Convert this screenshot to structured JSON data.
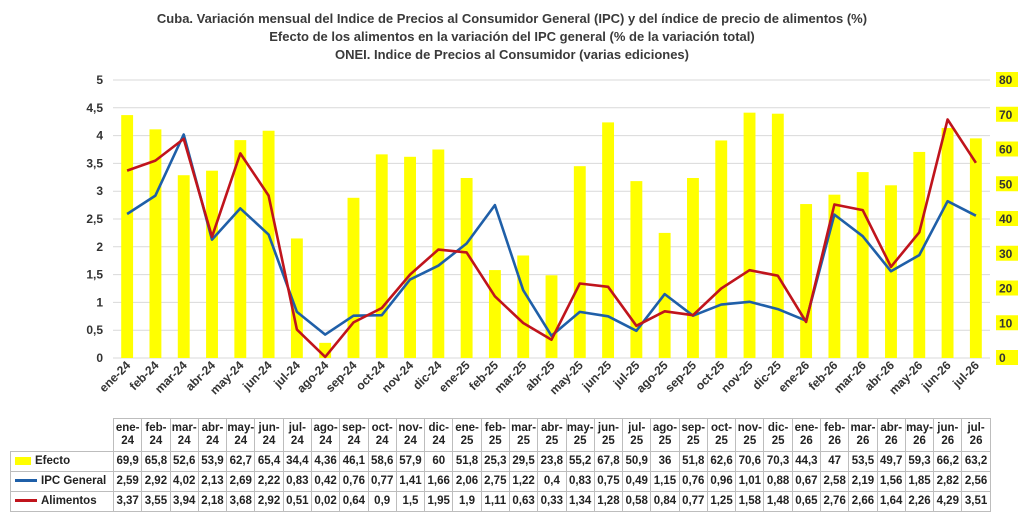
{
  "chart_data": {
    "type": "bar+line",
    "title": "Cuba. Variación mensual del Indice de Precios al Consumidor General  (IPC) y del índice de precio de alimentos (%)",
    "subtitle": "Efecto de los alimentos en la variación del IPC general (%  de la variación total)",
    "subtitle2": "ONEI. Indice de Precios al Consumidor (varias ediciones)",
    "categories": [
      "ene-24",
      "feb-24",
      "mar-24",
      "abr-24",
      "may-24",
      "jun-24",
      "jul-24",
      "ago-24",
      "sep-24",
      "oct-24",
      "nov-24",
      "dic-24",
      "ene-25",
      "feb-25",
      "mar-25",
      "abr-25",
      "may-25",
      "jun-25",
      "jul-25",
      "ago-25",
      "sep-25",
      "oct-25",
      "nov-25",
      "dic-25",
      "ene-26",
      "feb-26",
      "mar-26",
      "abr-26",
      "may-26",
      "jun-26",
      "jul-26"
    ],
    "table_categories": [
      "ene-24",
      "feb-24",
      "mar-24",
      "abr-24",
      "may-24",
      "jun-24",
      "jul-24",
      "ago-24",
      "sep-24",
      "oct-24",
      "nov-24",
      "dic-24",
      "ene-25",
      "feb-25",
      "mar-25",
      "abr-25",
      "may-25",
      "jun-25",
      "jul-25",
      "ago-25",
      "sep-25",
      "oct-25",
      "nov-25",
      "dic-25",
      "ene-26",
      "feb-26",
      "mar-26",
      "abr-26",
      "may-26",
      "jun-26",
      "jul-26"
    ],
    "series": [
      {
        "name": "Efecto",
        "kind": "bar",
        "axis": "right",
        "color": "#ffff00",
        "values": [
          69.9,
          65.8,
          52.6,
          53.9,
          62.7,
          65.4,
          34.4,
          4.36,
          46.1,
          58.6,
          57.9,
          60,
          51.8,
          25.3,
          29.5,
          23.8,
          55.2,
          67.8,
          50.9,
          36,
          51.8,
          62.6,
          70.6,
          70.3,
          44.3,
          47,
          53.5,
          49.7,
          59.3,
          66.2,
          63.2
        ],
        "labels": [
          "69,9",
          "65,8",
          "52,6",
          "53,9",
          "62,7",
          "65,4",
          "34,4",
          "4,36",
          "46,1",
          "58,6",
          "57,9",
          "60",
          "51,8",
          "25,3",
          "29,5",
          "23,8",
          "55,2",
          "67,8",
          "50,9",
          "36",
          "51,8",
          "62,6",
          "70,6",
          "70,3",
          "44,3",
          "47",
          "53,5",
          "49,7",
          "59,3",
          "66,2",
          "63,2"
        ]
      },
      {
        "name": "IPC General",
        "kind": "line",
        "axis": "left",
        "color": "#1f5fa8",
        "values": [
          2.59,
          2.92,
          4.02,
          2.13,
          2.69,
          2.22,
          0.83,
          0.42,
          0.76,
          0.77,
          1.41,
          1.66,
          2.06,
          2.75,
          1.22,
          0.4,
          0.83,
          0.75,
          0.49,
          1.15,
          0.76,
          0.96,
          1.01,
          0.88,
          0.67,
          2.58,
          2.19,
          1.56,
          1.85,
          2.82,
          2.56
        ],
        "labels": [
          "2,59",
          "2,92",
          "4,02",
          "2,13",
          "2,69",
          "2,22",
          "0,83",
          "0,42",
          "0,76",
          "0,77",
          "1,41",
          "1,66",
          "2,06",
          "2,75",
          "1,22",
          "0,4",
          "0,83",
          "0,75",
          "0,49",
          "1,15",
          "0,76",
          "0,96",
          "1,01",
          "0,88",
          "0,67",
          "2,58",
          "2,19",
          "1,56",
          "1,85",
          "2,82",
          "2,56"
        ]
      },
      {
        "name": "Alimentos",
        "kind": "line",
        "axis": "left",
        "color": "#c0141c",
        "values": [
          3.37,
          3.55,
          3.94,
          2.18,
          3.68,
          2.92,
          0.51,
          0.02,
          0.64,
          0.9,
          1.5,
          1.95,
          1.9,
          1.11,
          0.63,
          0.33,
          1.34,
          1.28,
          0.58,
          0.84,
          0.77,
          1.25,
          1.58,
          1.48,
          0.65,
          2.76,
          2.66,
          1.64,
          2.26,
          4.29,
          3.51
        ],
        "labels": [
          "3,37",
          "3,55",
          "3,94",
          "2,18",
          "3,68",
          "2,92",
          "0,51",
          "0,02",
          "0,64",
          "0,9",
          "1,5",
          "1,95",
          "1,9",
          "1,11",
          "0,63",
          "0,33",
          "1,34",
          "1,28",
          "0,58",
          "0,84",
          "0,77",
          "1,25",
          "1,58",
          "1,48",
          "0,65",
          "2,76",
          "2,66",
          "1,64",
          "2,26",
          "4,29",
          "3,51"
        ]
      }
    ],
    "y_left": {
      "min": 0,
      "max": 5,
      "ticks": [
        "0",
        "0,5",
        "1",
        "1,5",
        "2",
        "2,5",
        "3",
        "3,5",
        "4",
        "4,5",
        "5"
      ]
    },
    "y_right": {
      "min": 0,
      "max": 80,
      "ticks": [
        "0",
        "10",
        "20",
        "30",
        "40",
        "50",
        "60",
        "70",
        "80"
      ],
      "tick_box_color": "#ffff00"
    },
    "grid": true,
    "legend": "data-table-left"
  }
}
